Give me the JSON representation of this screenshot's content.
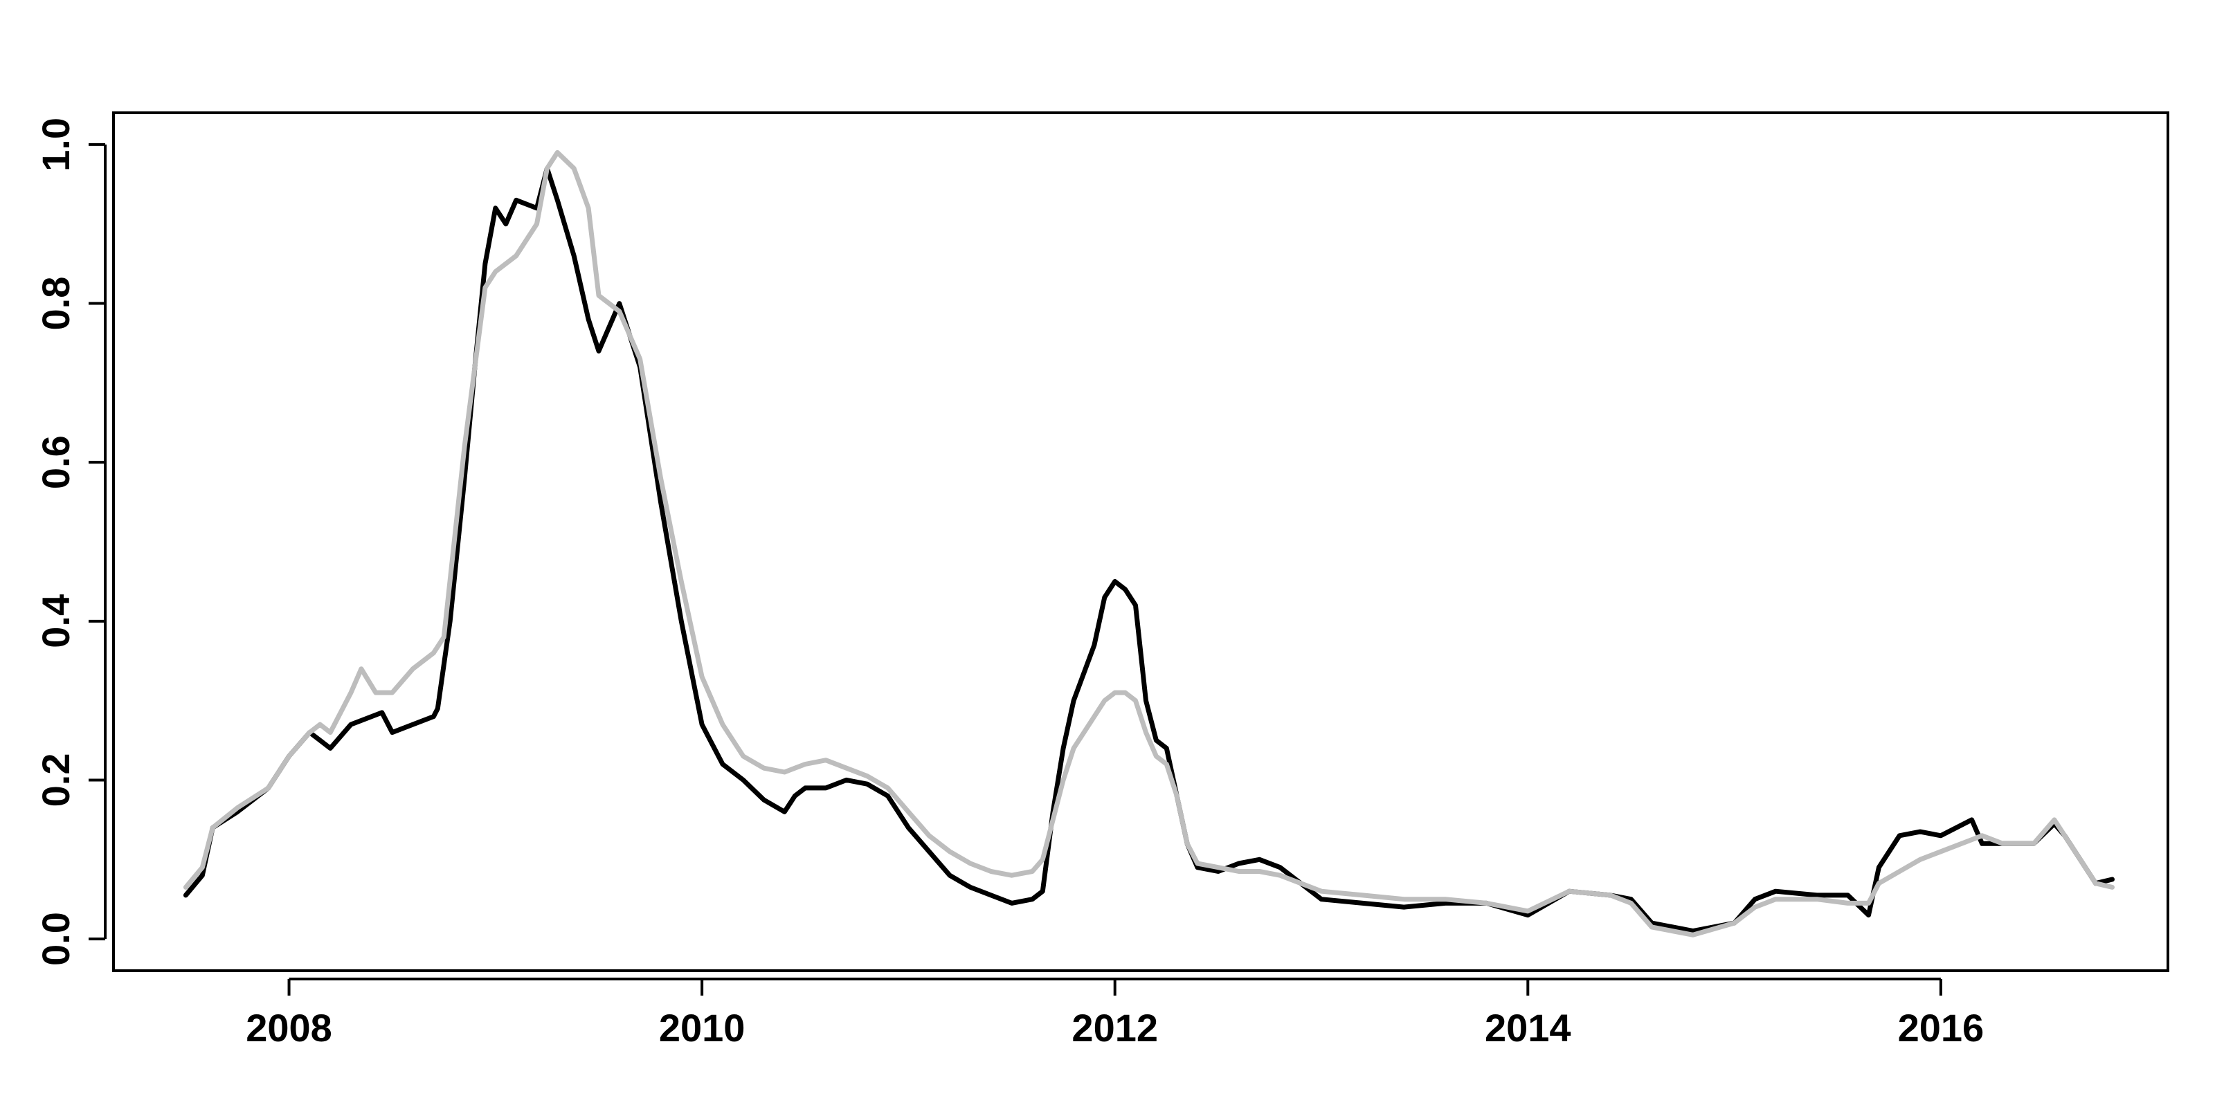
{
  "chart_data": {
    "type": "line",
    "title": "",
    "xlabel": "",
    "ylabel": "",
    "xlim": [
      2007.15,
      2017.1
    ],
    "ylim": [
      -0.04,
      1.04
    ],
    "xticks": [
      2008,
      2010,
      2012,
      2014,
      2016
    ],
    "xtick_labels": [
      "2008",
      "2010",
      "2012",
      "2014",
      "2016"
    ],
    "yticks": [
      0.0,
      0.2,
      0.4,
      0.6,
      0.8,
      1.0
    ],
    "ytick_labels": [
      "0.0",
      "0.2",
      "0.4",
      "0.6",
      "0.8",
      "1.0"
    ],
    "grid": false,
    "legend": "none",
    "series": [
      {
        "color": "#000000",
        "points": [
          [
            2007.5,
            0.055
          ],
          [
            2007.58,
            0.08
          ],
          [
            2007.63,
            0.14
          ],
          [
            2007.75,
            0.16
          ],
          [
            2007.9,
            0.19
          ],
          [
            2008.0,
            0.23
          ],
          [
            2008.1,
            0.26
          ],
          [
            2008.15,
            0.25
          ],
          [
            2008.2,
            0.24
          ],
          [
            2008.3,
            0.27
          ],
          [
            2008.4,
            0.28
          ],
          [
            2008.45,
            0.285
          ],
          [
            2008.5,
            0.26
          ],
          [
            2008.6,
            0.27
          ],
          [
            2008.7,
            0.28
          ],
          [
            2008.72,
            0.29
          ],
          [
            2008.78,
            0.4
          ],
          [
            2008.85,
            0.58
          ],
          [
            2008.9,
            0.72
          ],
          [
            2008.95,
            0.85
          ],
          [
            2009.0,
            0.92
          ],
          [
            2009.05,
            0.9
          ],
          [
            2009.1,
            0.93
          ],
          [
            2009.2,
            0.92
          ],
          [
            2009.25,
            0.97
          ],
          [
            2009.3,
            0.93
          ],
          [
            2009.38,
            0.86
          ],
          [
            2009.45,
            0.78
          ],
          [
            2009.5,
            0.74
          ],
          [
            2009.6,
            0.8
          ],
          [
            2009.7,
            0.72
          ],
          [
            2009.8,
            0.55
          ],
          [
            2009.9,
            0.4
          ],
          [
            2010.0,
            0.27
          ],
          [
            2010.1,
            0.22
          ],
          [
            2010.2,
            0.2
          ],
          [
            2010.3,
            0.175
          ],
          [
            2010.4,
            0.16
          ],
          [
            2010.45,
            0.18
          ],
          [
            2010.5,
            0.19
          ],
          [
            2010.6,
            0.19
          ],
          [
            2010.7,
            0.2
          ],
          [
            2010.8,
            0.195
          ],
          [
            2010.9,
            0.18
          ],
          [
            2011.0,
            0.14
          ],
          [
            2011.1,
            0.11
          ],
          [
            2011.2,
            0.08
          ],
          [
            2011.3,
            0.065
          ],
          [
            2011.4,
            0.055
          ],
          [
            2011.5,
            0.045
          ],
          [
            2011.6,
            0.05
          ],
          [
            2011.65,
            0.06
          ],
          [
            2011.7,
            0.16
          ],
          [
            2011.75,
            0.24
          ],
          [
            2011.8,
            0.3
          ],
          [
            2011.9,
            0.37
          ],
          [
            2011.95,
            0.43
          ],
          [
            2012.0,
            0.45
          ],
          [
            2012.05,
            0.44
          ],
          [
            2012.1,
            0.42
          ],
          [
            2012.15,
            0.3
          ],
          [
            2012.2,
            0.25
          ],
          [
            2012.25,
            0.24
          ],
          [
            2012.3,
            0.18
          ],
          [
            2012.35,
            0.12
          ],
          [
            2012.4,
            0.09
          ],
          [
            2012.5,
            0.085
          ],
          [
            2012.6,
            0.095
          ],
          [
            2012.7,
            0.1
          ],
          [
            2012.8,
            0.09
          ],
          [
            2012.9,
            0.07
          ],
          [
            2013.0,
            0.05
          ],
          [
            2013.2,
            0.045
          ],
          [
            2013.4,
            0.04
          ],
          [
            2013.6,
            0.045
          ],
          [
            2013.8,
            0.045
          ],
          [
            2014.0,
            0.03
          ],
          [
            2014.2,
            0.06
          ],
          [
            2014.4,
            0.055
          ],
          [
            2014.5,
            0.05
          ],
          [
            2014.6,
            0.02
          ],
          [
            2014.8,
            0.01
          ],
          [
            2015.0,
            0.02
          ],
          [
            2015.1,
            0.05
          ],
          [
            2015.2,
            0.06
          ],
          [
            2015.4,
            0.055
          ],
          [
            2015.55,
            0.055
          ],
          [
            2015.65,
            0.03
          ],
          [
            2015.7,
            0.09
          ],
          [
            2015.8,
            0.13
          ],
          [
            2015.9,
            0.135
          ],
          [
            2016.0,
            0.13
          ],
          [
            2016.15,
            0.15
          ],
          [
            2016.2,
            0.12
          ],
          [
            2016.3,
            0.12
          ],
          [
            2016.45,
            0.12
          ],
          [
            2016.55,
            0.145
          ],
          [
            2016.6,
            0.13
          ],
          [
            2016.7,
            0.09
          ],
          [
            2016.75,
            0.07
          ],
          [
            2016.83,
            0.075
          ]
        ]
      },
      {
        "color": "#bdbdbd",
        "points": [
          [
            2007.5,
            0.065
          ],
          [
            2007.58,
            0.09
          ],
          [
            2007.63,
            0.14
          ],
          [
            2007.75,
            0.165
          ],
          [
            2007.9,
            0.19
          ],
          [
            2008.0,
            0.23
          ],
          [
            2008.1,
            0.26
          ],
          [
            2008.15,
            0.27
          ],
          [
            2008.2,
            0.26
          ],
          [
            2008.3,
            0.31
          ],
          [
            2008.35,
            0.34
          ],
          [
            2008.42,
            0.31
          ],
          [
            2008.5,
            0.31
          ],
          [
            2008.6,
            0.34
          ],
          [
            2008.7,
            0.36
          ],
          [
            2008.75,
            0.38
          ],
          [
            2008.8,
            0.5
          ],
          [
            2008.85,
            0.62
          ],
          [
            2008.9,
            0.72
          ],
          [
            2008.95,
            0.82
          ],
          [
            2009.0,
            0.84
          ],
          [
            2009.1,
            0.86
          ],
          [
            2009.2,
            0.9
          ],
          [
            2009.25,
            0.97
          ],
          [
            2009.3,
            0.99
          ],
          [
            2009.38,
            0.97
          ],
          [
            2009.45,
            0.92
          ],
          [
            2009.5,
            0.81
          ],
          [
            2009.6,
            0.79
          ],
          [
            2009.7,
            0.73
          ],
          [
            2009.8,
            0.58
          ],
          [
            2009.9,
            0.45
          ],
          [
            2010.0,
            0.33
          ],
          [
            2010.1,
            0.27
          ],
          [
            2010.2,
            0.23
          ],
          [
            2010.3,
            0.215
          ],
          [
            2010.4,
            0.21
          ],
          [
            2010.5,
            0.22
          ],
          [
            2010.6,
            0.225
          ],
          [
            2010.7,
            0.215
          ],
          [
            2010.8,
            0.205
          ],
          [
            2010.9,
            0.19
          ],
          [
            2011.0,
            0.16
          ],
          [
            2011.1,
            0.13
          ],
          [
            2011.2,
            0.11
          ],
          [
            2011.3,
            0.095
          ],
          [
            2011.4,
            0.085
          ],
          [
            2011.5,
            0.08
          ],
          [
            2011.6,
            0.085
          ],
          [
            2011.65,
            0.1
          ],
          [
            2011.7,
            0.15
          ],
          [
            2011.75,
            0.2
          ],
          [
            2011.8,
            0.24
          ],
          [
            2011.9,
            0.28
          ],
          [
            2011.95,
            0.3
          ],
          [
            2012.0,
            0.31
          ],
          [
            2012.05,
            0.31
          ],
          [
            2012.1,
            0.3
          ],
          [
            2012.15,
            0.26
          ],
          [
            2012.2,
            0.23
          ],
          [
            2012.25,
            0.22
          ],
          [
            2012.3,
            0.18
          ],
          [
            2012.35,
            0.12
          ],
          [
            2012.4,
            0.095
          ],
          [
            2012.5,
            0.09
          ],
          [
            2012.6,
            0.085
          ],
          [
            2012.7,
            0.085
          ],
          [
            2012.8,
            0.08
          ],
          [
            2012.9,
            0.07
          ],
          [
            2013.0,
            0.06
          ],
          [
            2013.2,
            0.055
          ],
          [
            2013.4,
            0.05
          ],
          [
            2013.6,
            0.05
          ],
          [
            2013.8,
            0.045
          ],
          [
            2014.0,
            0.035
          ],
          [
            2014.2,
            0.06
          ],
          [
            2014.4,
            0.055
          ],
          [
            2014.5,
            0.045
          ],
          [
            2014.6,
            0.015
          ],
          [
            2014.8,
            0.005
          ],
          [
            2015.0,
            0.02
          ],
          [
            2015.1,
            0.04
          ],
          [
            2015.2,
            0.05
          ],
          [
            2015.4,
            0.05
          ],
          [
            2015.55,
            0.045
          ],
          [
            2015.65,
            0.045
          ],
          [
            2015.7,
            0.07
          ],
          [
            2015.8,
            0.085
          ],
          [
            2015.9,
            0.1
          ],
          [
            2016.0,
            0.11
          ],
          [
            2016.15,
            0.125
          ],
          [
            2016.2,
            0.13
          ],
          [
            2016.3,
            0.12
          ],
          [
            2016.45,
            0.12
          ],
          [
            2016.55,
            0.15
          ],
          [
            2016.6,
            0.13
          ],
          [
            2016.7,
            0.09
          ],
          [
            2016.75,
            0.07
          ],
          [
            2016.83,
            0.065
          ]
        ]
      }
    ]
  }
}
